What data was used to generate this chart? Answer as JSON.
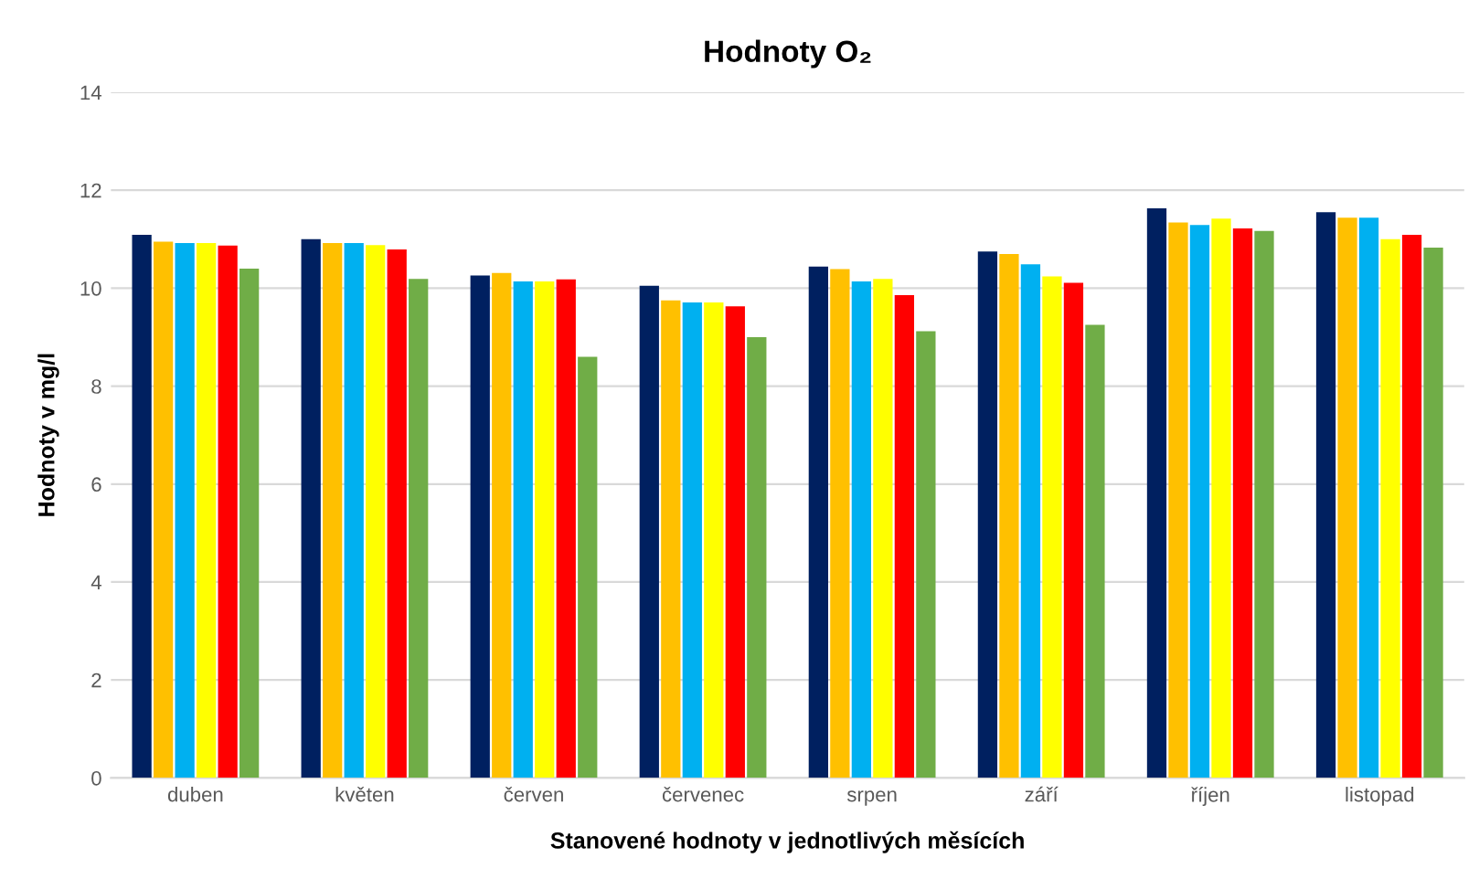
{
  "chart_data": {
    "type": "bar",
    "title": "Hodnoty O₂",
    "xlabel": "Stanovené hodnoty v jednotlivých měsících",
    "ylabel": "Hodnoty v mg/l",
    "categories": [
      "duben",
      "květen",
      "červen",
      "červenec",
      "srpen",
      "září",
      "říjen",
      "listopad"
    ],
    "series": [
      {
        "color": "#002060",
        "values": [
          11.09,
          11.0,
          10.26,
          10.05,
          10.44,
          10.75,
          11.63,
          11.55
        ]
      },
      {
        "color": "#ffc000",
        "values": [
          10.95,
          10.92,
          10.31,
          9.75,
          10.39,
          10.7,
          11.34,
          11.44
        ]
      },
      {
        "color": "#00b0f0",
        "values": [
          10.92,
          10.92,
          10.14,
          9.71,
          10.14,
          10.49,
          11.29,
          11.44
        ]
      },
      {
        "color": "#ffff00",
        "values": [
          10.92,
          10.88,
          10.14,
          9.71,
          10.19,
          10.24,
          11.42,
          11.0
        ]
      },
      {
        "color": "#ff0000",
        "values": [
          10.87,
          10.79,
          10.18,
          9.63,
          9.86,
          10.11,
          11.22,
          11.09
        ]
      },
      {
        "color": "#70ad47",
        "values": [
          10.4,
          10.19,
          8.6,
          9.0,
          9.12,
          9.25,
          11.17,
          10.83
        ]
      }
    ],
    "ylim": [
      0,
      14
    ],
    "yticks": [
      0,
      2,
      4,
      6,
      8,
      10,
      12,
      14
    ],
    "grid": "y"
  }
}
